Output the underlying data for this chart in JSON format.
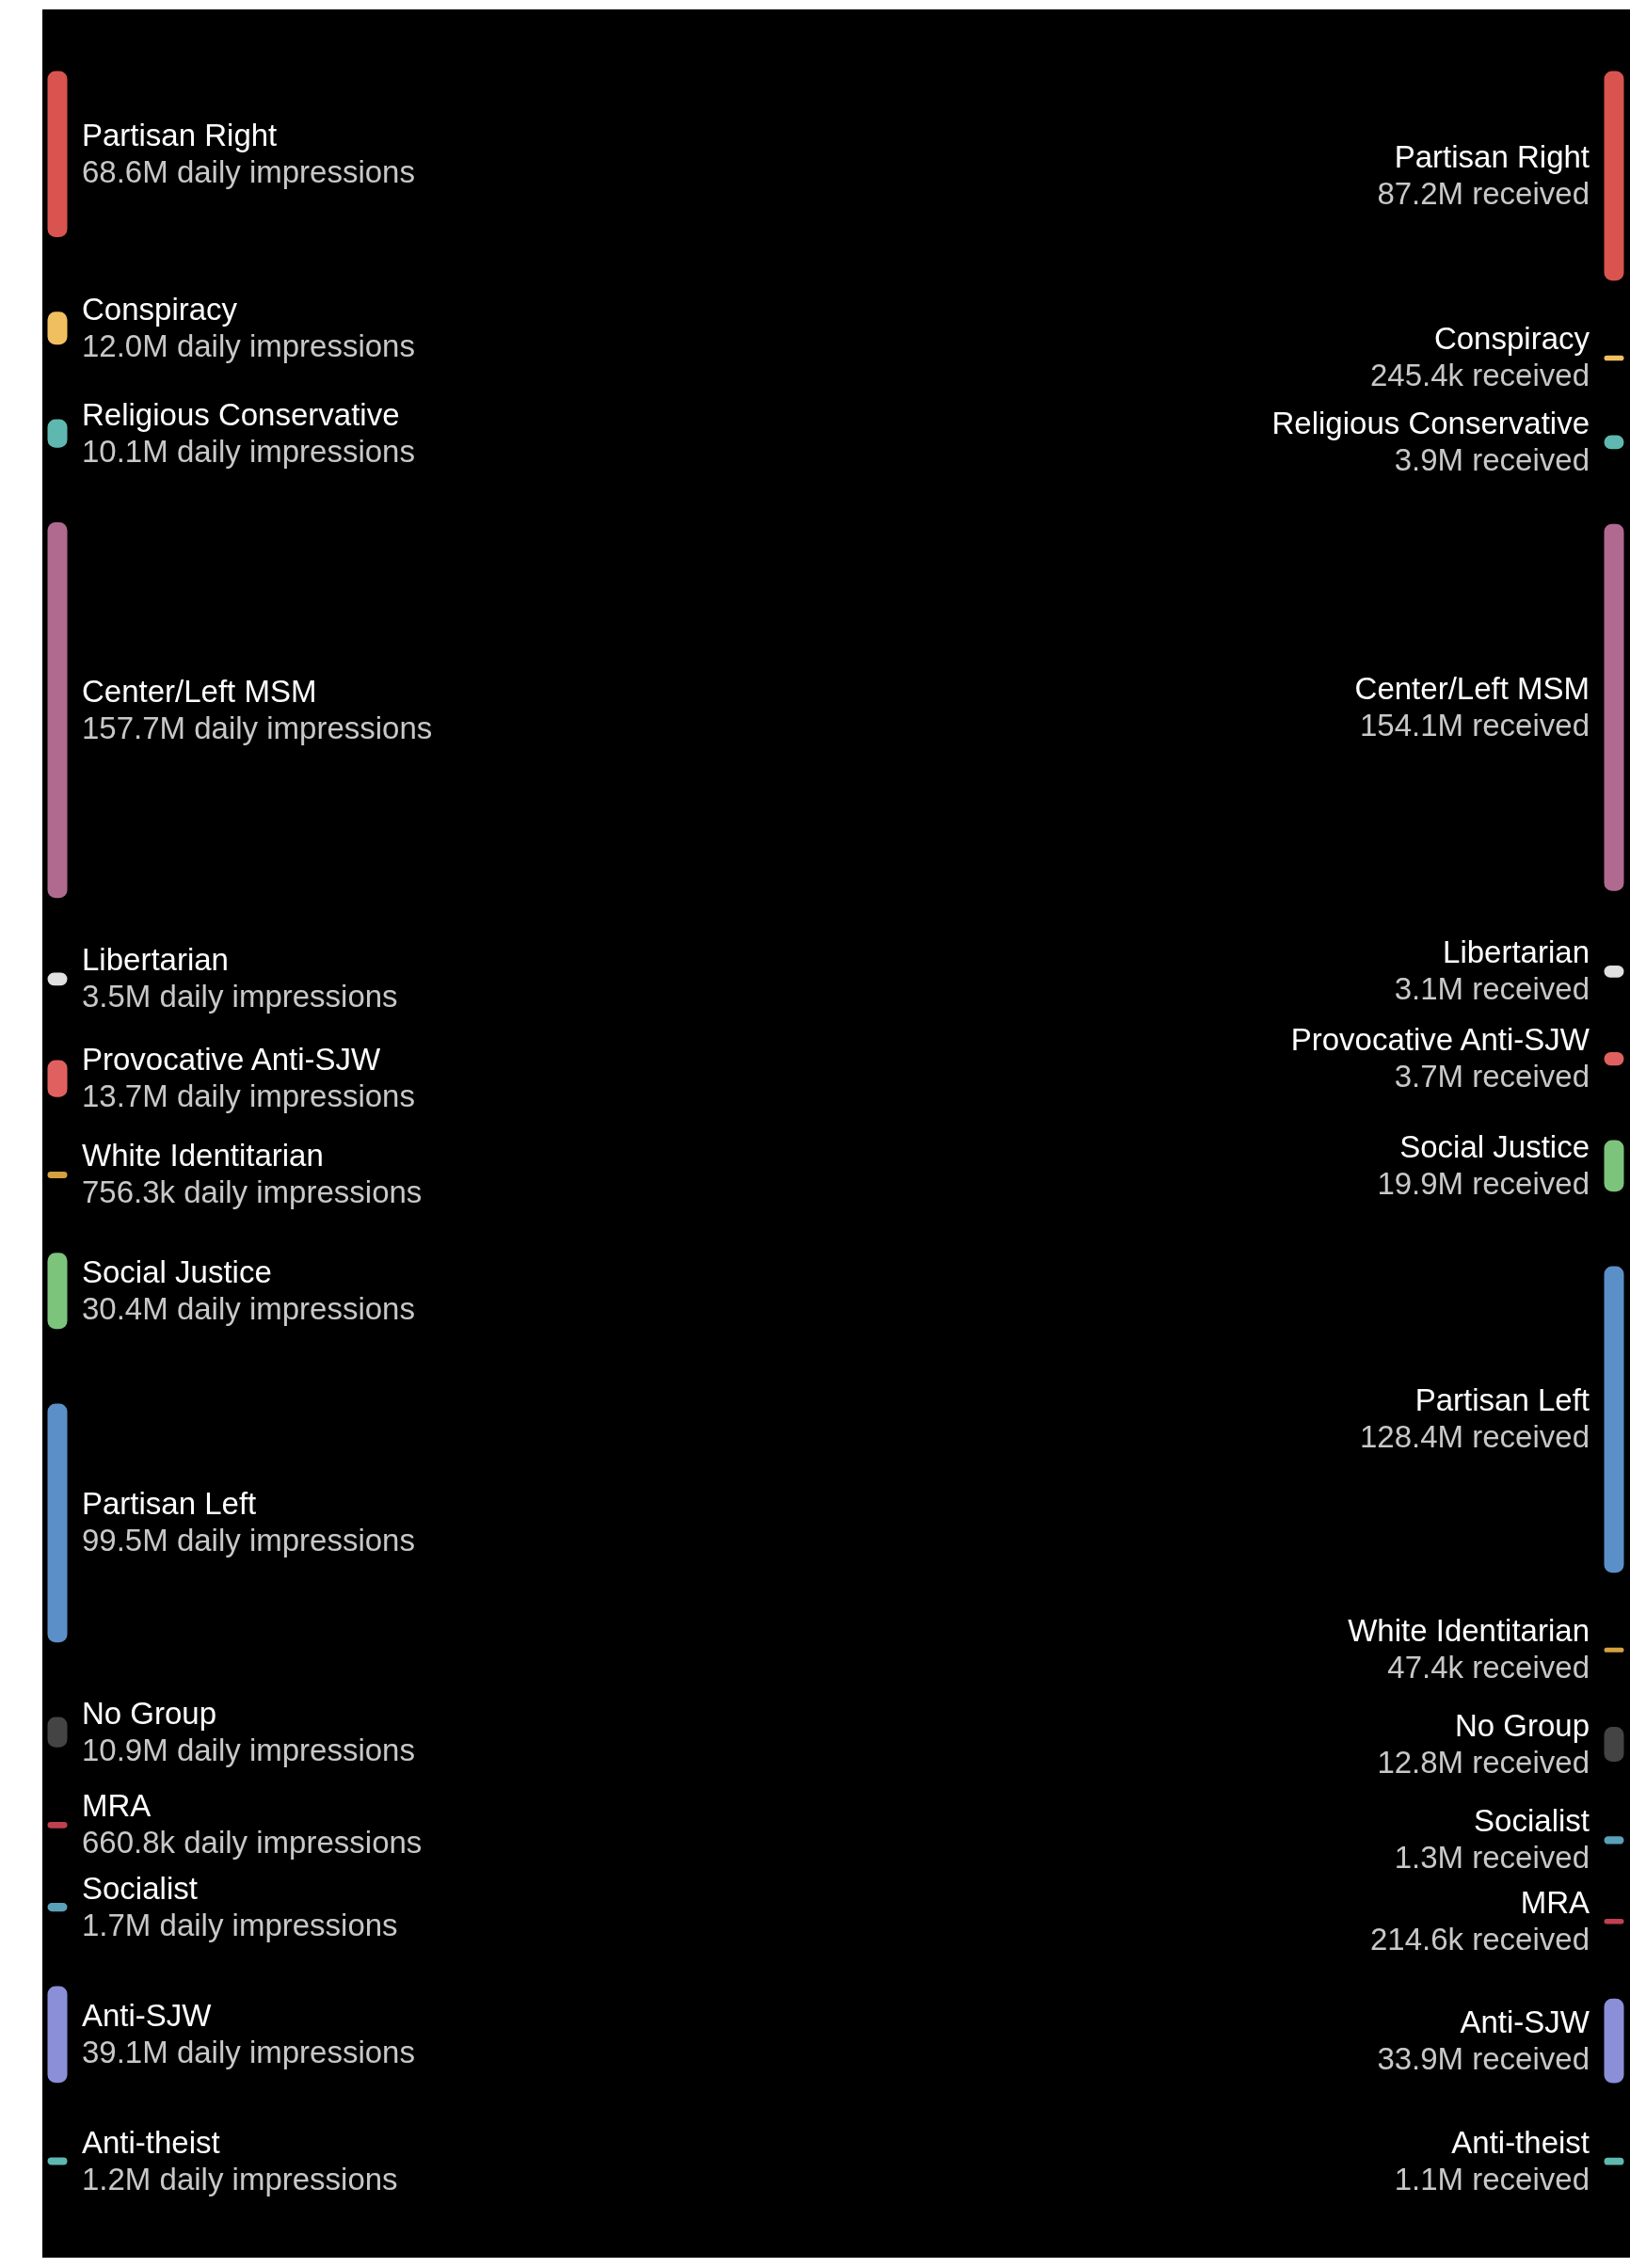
{
  "chart_data": [
    {
      "type": "other",
      "categories": [
        "Partisan Right",
        "Conspiracy",
        "Religious Conservative",
        "Center/Left MSM",
        "Libertarian",
        "Provocative Anti-SJW",
        "White Identitarian",
        "Social Justice",
        "Partisan Left",
        "No Group",
        "MRA",
        "Socialist",
        "Anti-SJW",
        "Anti-theist"
      ],
      "values": [
        68600000,
        12000000,
        10100000,
        157700000,
        3500000,
        13700000,
        756300,
        30400000,
        99500000,
        10900000,
        660800,
        1700000,
        39100000,
        1200000
      ],
      "value_labels": [
        "68.6M daily impressions",
        "12.0M daily impressions",
        "10.1M daily impressions",
        "157.7M daily impressions",
        "3.5M daily impressions",
        "13.7M daily impressions",
        "756.3k daily impressions",
        "30.4M daily impressions",
        "99.5M daily impressions",
        "10.9M daily impressions",
        "660.8k daily impressions",
        "1.7M daily impressions",
        "39.1M daily impressions",
        "1.2M daily impressions"
      ],
      "colors": [
        "#d9534f",
        "#f0c060",
        "#5fb8b0",
        "#b06a90",
        "#e0e0e0",
        "#e06060",
        "#d4a040",
        "#7cc47c",
        "#5b8fc8",
        "#444444",
        "#c04050",
        "#5aa0b8",
        "#8a8fd8",
        "#5fb8b0"
      ]
    },
    {
      "type": "other",
      "categories": [
        "Partisan Right",
        "Conspiracy",
        "Religious Conservative",
        "Center/Left MSM",
        "Libertarian",
        "Provocative Anti-SJW",
        "Social Justice",
        "Partisan Left",
        "White Identitarian",
        "No Group",
        "Socialist",
        "MRA",
        "Anti-SJW",
        "Anti-theist"
      ],
      "values": [
        87200000,
        245400,
        3900000,
        154100000,
        3100000,
        3700000,
        19900000,
        128400000,
        47400,
        12800000,
        1300000,
        214600,
        33900000,
        1100000
      ],
      "value_labels": [
        "87.2M received",
        "245.4k received",
        "3.9M received",
        "154.1M received",
        "3.1M received",
        "3.7M received",
        "19.9M received",
        "128.4M received",
        "47.4k received",
        "12.8M received",
        "1.3M received",
        "214.6k received",
        "33.9M received",
        "1.1M received"
      ],
      "colors": [
        "#d9534f",
        "#f0c060",
        "#5fb8b0",
        "#b06a90",
        "#e0e0e0",
        "#e06060",
        "#7cc47c",
        "#5b8fc8",
        "#d4a040",
        "#444444",
        "#5aa0b8",
        "#c04050",
        "#8a8fd8",
        "#5fb8b0"
      ]
    }
  ]
}
